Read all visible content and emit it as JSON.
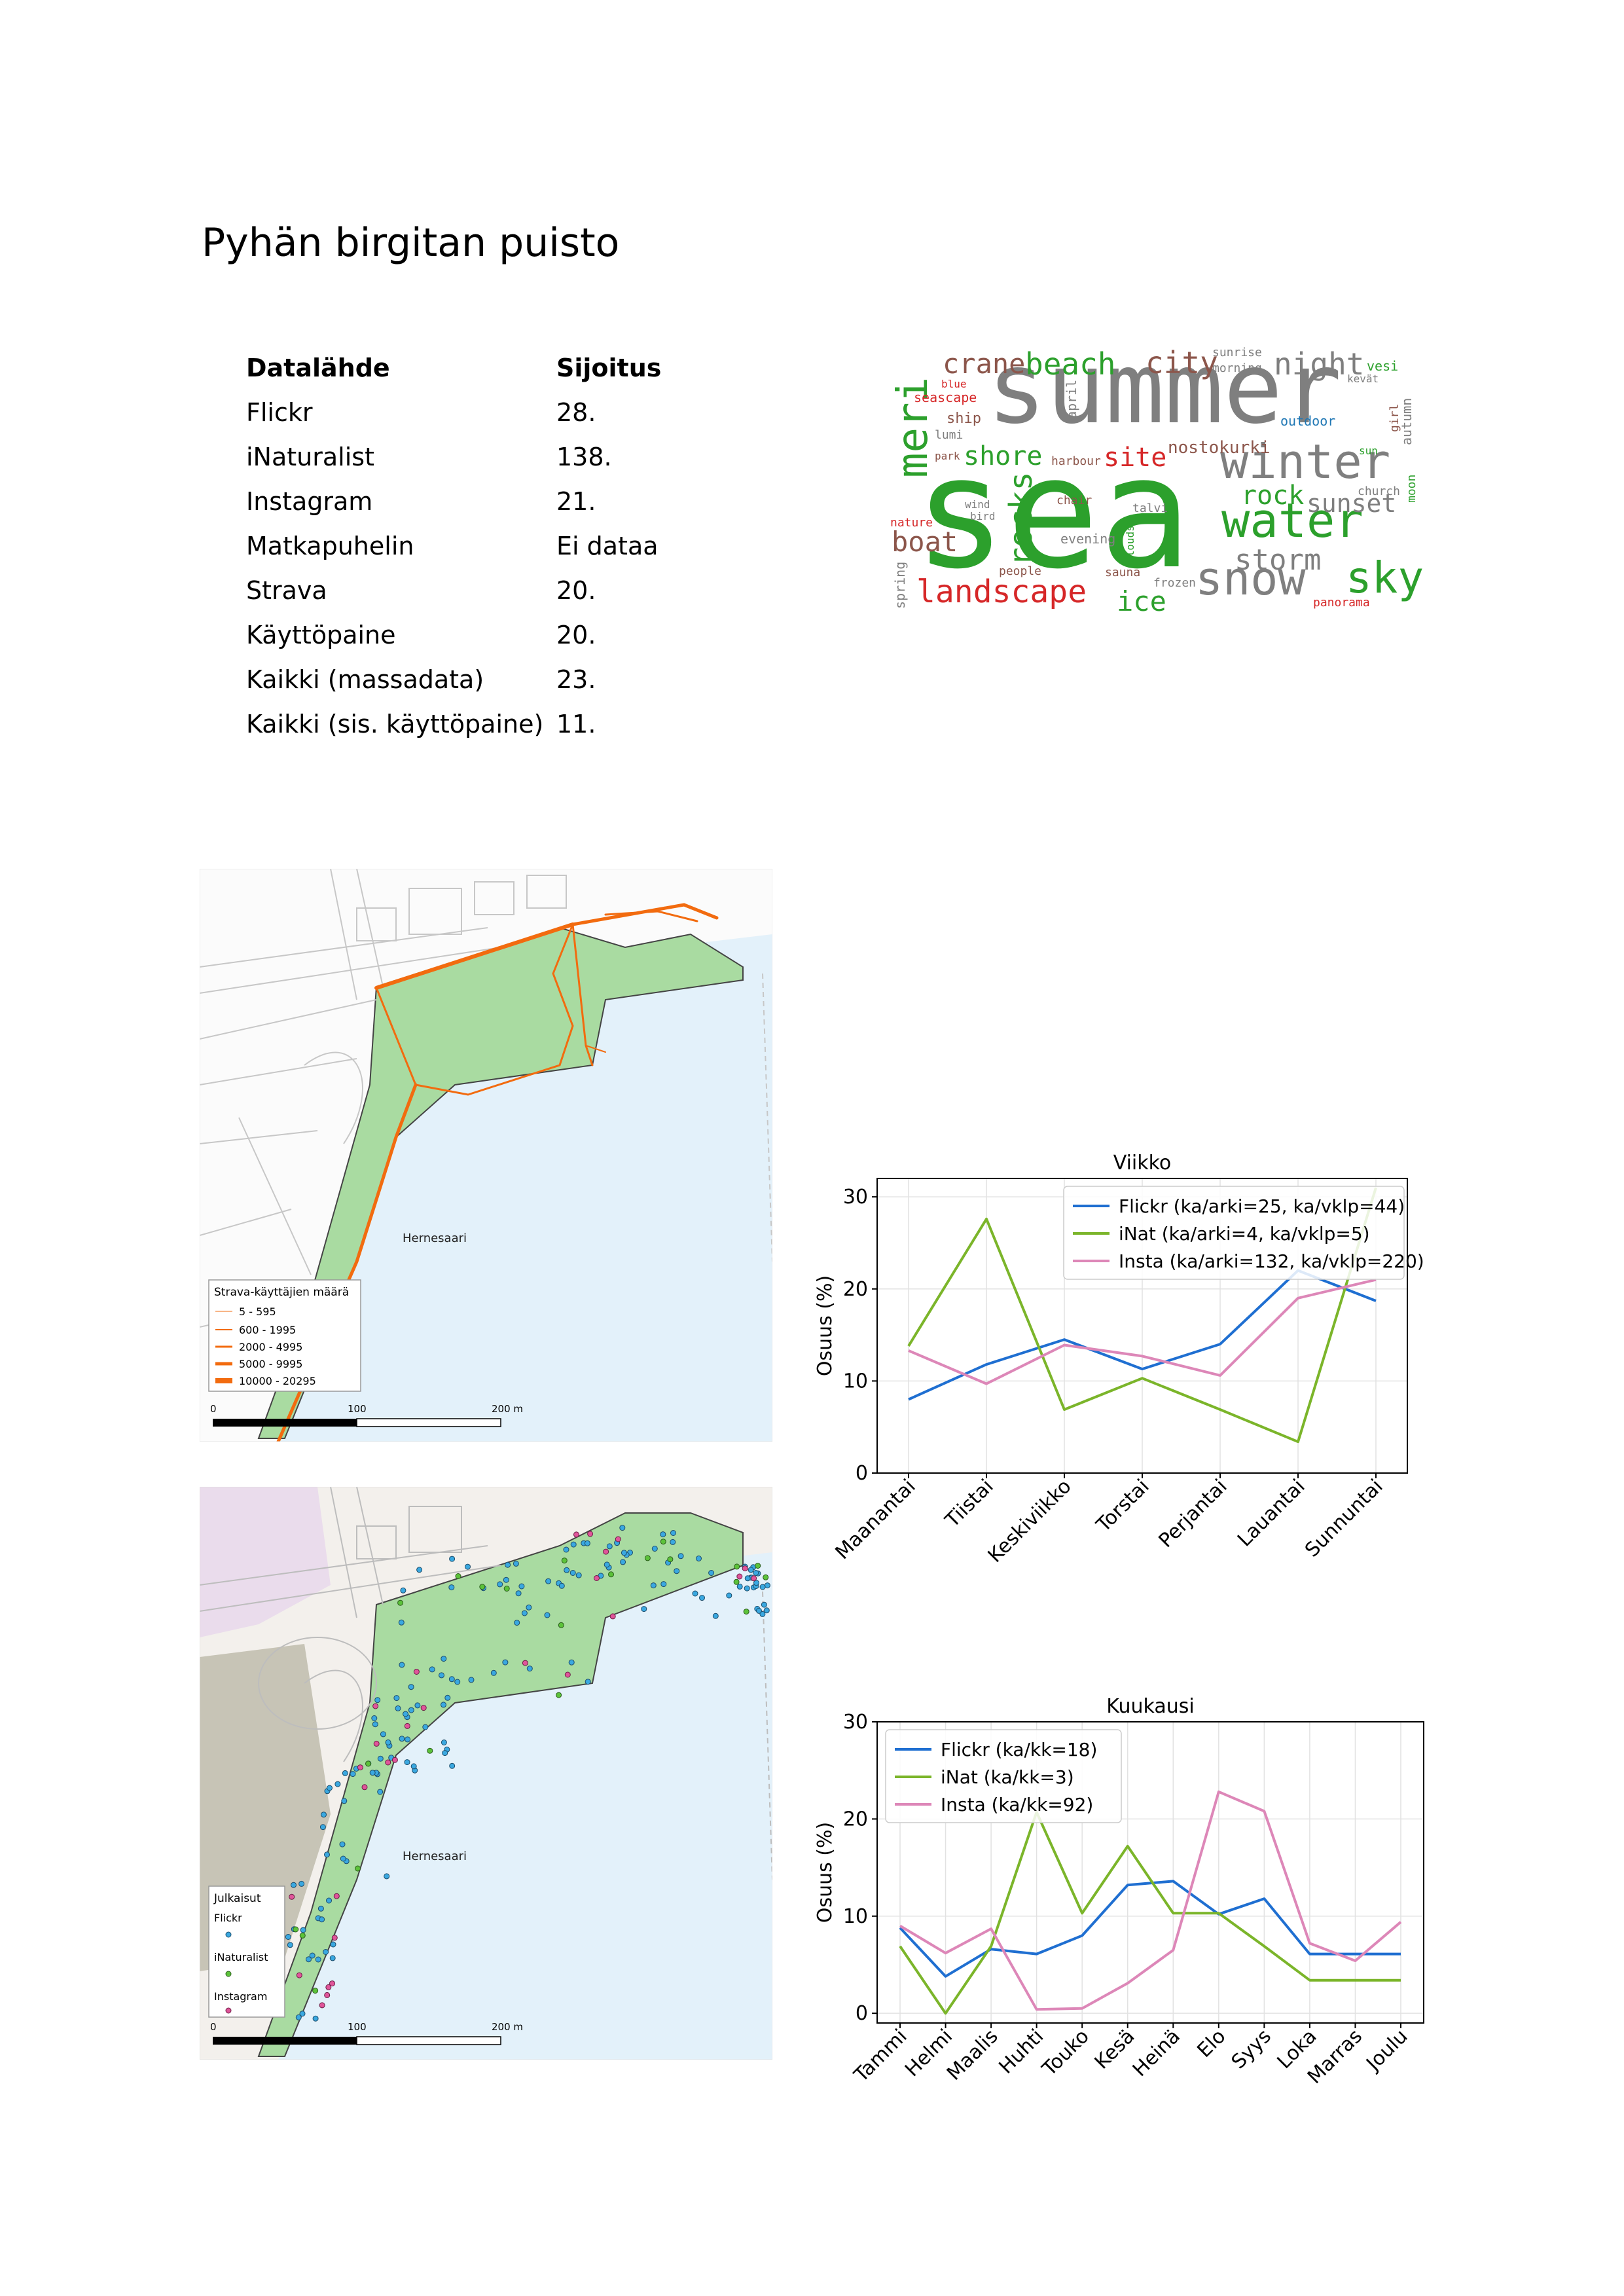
{
  "page": {
    "title": "Pyhän birgitan puisto"
  },
  "ranking": {
    "header": {
      "source": "Datalähde",
      "rank": "Sijoitus"
    },
    "rows": [
      {
        "source": "Flickr",
        "rank": "28."
      },
      {
        "source": "iNaturalist",
        "rank": "138."
      },
      {
        "source": "Instagram",
        "rank": "21."
      },
      {
        "source": "Matkapuhelin",
        "rank": "Ei dataa"
      },
      {
        "source": "Strava",
        "rank": "20."
      },
      {
        "source": "Käyttöpaine",
        "rank": "20."
      },
      {
        "source": "Kaikki (massadata)",
        "rank": "23."
      },
      {
        "source": "Kaikki (sis. käyttöpaine)",
        "rank": "11."
      }
    ]
  },
  "wordcloud": {
    "words": [
      {
        "text": "summer",
        "color": "#7f7f7f"
      },
      {
        "text": "sea",
        "color": "#2ca02c"
      },
      {
        "text": "winter",
        "color": "#7f7f7f"
      },
      {
        "text": "water",
        "color": "#2ca02c"
      },
      {
        "text": "snow",
        "color": "#7f7f7f"
      },
      {
        "text": "sky",
        "color": "#2ca02c"
      },
      {
        "text": "landscape",
        "color": "#d62728"
      },
      {
        "text": "meri",
        "color": "#2ca02c"
      },
      {
        "text": "crane",
        "color": "#8c564b"
      },
      {
        "text": "beach",
        "color": "#2ca02c"
      },
      {
        "text": "city",
        "color": "#8c564b"
      },
      {
        "text": "night",
        "color": "#7f7f7f"
      },
      {
        "text": "rocks",
        "color": "#2ca02c"
      },
      {
        "text": "boat",
        "color": "#8c564b"
      },
      {
        "text": "shore",
        "color": "#2ca02c"
      },
      {
        "text": "site",
        "color": "#d62728"
      },
      {
        "text": "rock",
        "color": "#2ca02c"
      },
      {
        "text": "sunset",
        "color": "#7f7f7f"
      },
      {
        "text": "storm",
        "color": "#7f7f7f"
      },
      {
        "text": "ice",
        "color": "#2ca02c"
      },
      {
        "text": "nostokurki",
        "color": "#8c564b"
      },
      {
        "text": "sunrise",
        "color": "#7f7f7f"
      },
      {
        "text": "morning",
        "color": "#7f7f7f"
      },
      {
        "text": "vesi",
        "color": "#2ca02c"
      },
      {
        "text": "kevät",
        "color": "#7f7f7f"
      },
      {
        "text": "blue",
        "color": "#d62728"
      },
      {
        "text": "seascape",
        "color": "#d62728"
      },
      {
        "text": "ship",
        "color": "#8c564b"
      },
      {
        "text": "lumi",
        "color": "#7f7f7f"
      },
      {
        "text": "park",
        "color": "#8c564b"
      },
      {
        "text": "april",
        "color": "#7f7f7f"
      },
      {
        "text": "outdoor",
        "color": "#1f77b4"
      },
      {
        "text": "girl",
        "color": "#8c564b"
      },
      {
        "text": "autumn",
        "color": "#7f7f7f"
      },
      {
        "text": "sun",
        "color": "#2ca02c"
      },
      {
        "text": "church",
        "color": "#7f7f7f"
      },
      {
        "text": "moon",
        "color": "#2ca02c"
      },
      {
        "text": "harbour",
        "color": "#8c564b"
      },
      {
        "text": "chair",
        "color": "#8c564b"
      },
      {
        "text": "talvi",
        "color": "#7f7f7f"
      },
      {
        "text": "wind",
        "color": "#7f7f7f"
      },
      {
        "text": "bird",
        "color": "#7f7f7f"
      },
      {
        "text": "nature",
        "color": "#d62728"
      },
      {
        "text": "evening",
        "color": "#7f7f7f"
      },
      {
        "text": "clouds",
        "color": "#2ca02c"
      },
      {
        "text": "people",
        "color": "#8c564b"
      },
      {
        "text": "sauna",
        "color": "#8c564b"
      },
      {
        "text": "frozen",
        "color": "#7f7f7f"
      },
      {
        "text": "spring",
        "color": "#7f7f7f"
      },
      {
        "text": "panorama",
        "color": "#d62728"
      }
    ]
  },
  "map1": {
    "area_label": "Hernesaari",
    "legend_title": "Strava-käyttäjien määrä",
    "legend_items": [
      "5 - 595",
      "600 - 1995",
      "2000 - 4995",
      "5000 - 9995",
      "10000 - 20295"
    ],
    "scale_labels": [
      "0",
      "100",
      "200 m"
    ],
    "colors": {
      "route": "#f26b0f",
      "park": "#a9dba1",
      "water": "#e3f1fa"
    }
  },
  "map2": {
    "area_label": "Hernesaari",
    "legend_title": "Julkaisut",
    "legend_items": [
      "Flickr",
      "iNaturalist",
      "Instagram"
    ],
    "scale_labels": [
      "0",
      "100",
      "200 m"
    ],
    "colors": {
      "flickr": "#3aa8e0",
      "inat": "#5cc23a",
      "insta": "#e0559a",
      "park": "#a9dba1",
      "water": "#e3f1fa"
    }
  },
  "chart_data": [
    {
      "type": "line",
      "title": "Viikko",
      "xlabel": "",
      "ylabel": "Osuus (%)",
      "ylim": [
        0,
        32
      ],
      "yticks": [
        0,
        10,
        20,
        30
      ],
      "categories": [
        "Maanantai",
        "Tiistai",
        "Keskiviikko",
        "Torstai",
        "Perjantai",
        "Lauantai",
        "Sunnuntai"
      ],
      "legend_position": "top-right",
      "grid": true,
      "series": [
        {
          "name": "Flickr (ka/arki=25, ka/vklp=44)",
          "color": "#1f6fd1",
          "values": [
            8.0,
            11.8,
            14.5,
            11.3,
            14.0,
            22.0,
            18.7
          ]
        },
        {
          "name": "iNat (ka/arki=4, ka/vklp=5)",
          "color": "#7bb52a",
          "values": [
            13.8,
            27.6,
            6.9,
            10.3,
            6.9,
            3.4,
            31.0
          ]
        },
        {
          "name": "Insta (ka/arki=132, ka/vklp=220)",
          "color": "#dd87b8",
          "values": [
            13.3,
            9.7,
            13.9,
            12.7,
            10.6,
            19.0,
            21.0
          ]
        }
      ]
    },
    {
      "type": "line",
      "title": "Kuukausi",
      "xlabel": "",
      "ylabel": "Osuus (%)",
      "ylim": [
        -1,
        30
      ],
      "yticks": [
        0,
        10,
        20,
        30
      ],
      "categories": [
        "Tammi",
        "Helmi",
        "Maalis",
        "Huhti",
        "Touko",
        "Kesä",
        "Heinä",
        "Elo",
        "Syys",
        "Loka",
        "Marras",
        "Joulu"
      ],
      "legend_position": "top-left",
      "grid": true,
      "series": [
        {
          "name": "Flickr (ka/kk=18)",
          "color": "#1f6fd1",
          "values": [
            8.8,
            3.8,
            6.6,
            6.1,
            8.0,
            13.2,
            13.6,
            10.2,
            11.8,
            6.1,
            6.1,
            6.1
          ]
        },
        {
          "name": "iNat (ka/kk=3)",
          "color": "#7bb52a",
          "values": [
            6.9,
            0.0,
            6.9,
            20.7,
            10.3,
            17.2,
            10.3,
            10.3,
            6.9,
            3.4,
            3.4,
            3.4
          ]
        },
        {
          "name": "Insta (ka/kk=92)",
          "color": "#dd87b8",
          "values": [
            9.0,
            6.2,
            8.7,
            0.4,
            0.5,
            3.1,
            6.5,
            22.8,
            20.8,
            7.2,
            5.4,
            9.4
          ]
        }
      ]
    }
  ]
}
